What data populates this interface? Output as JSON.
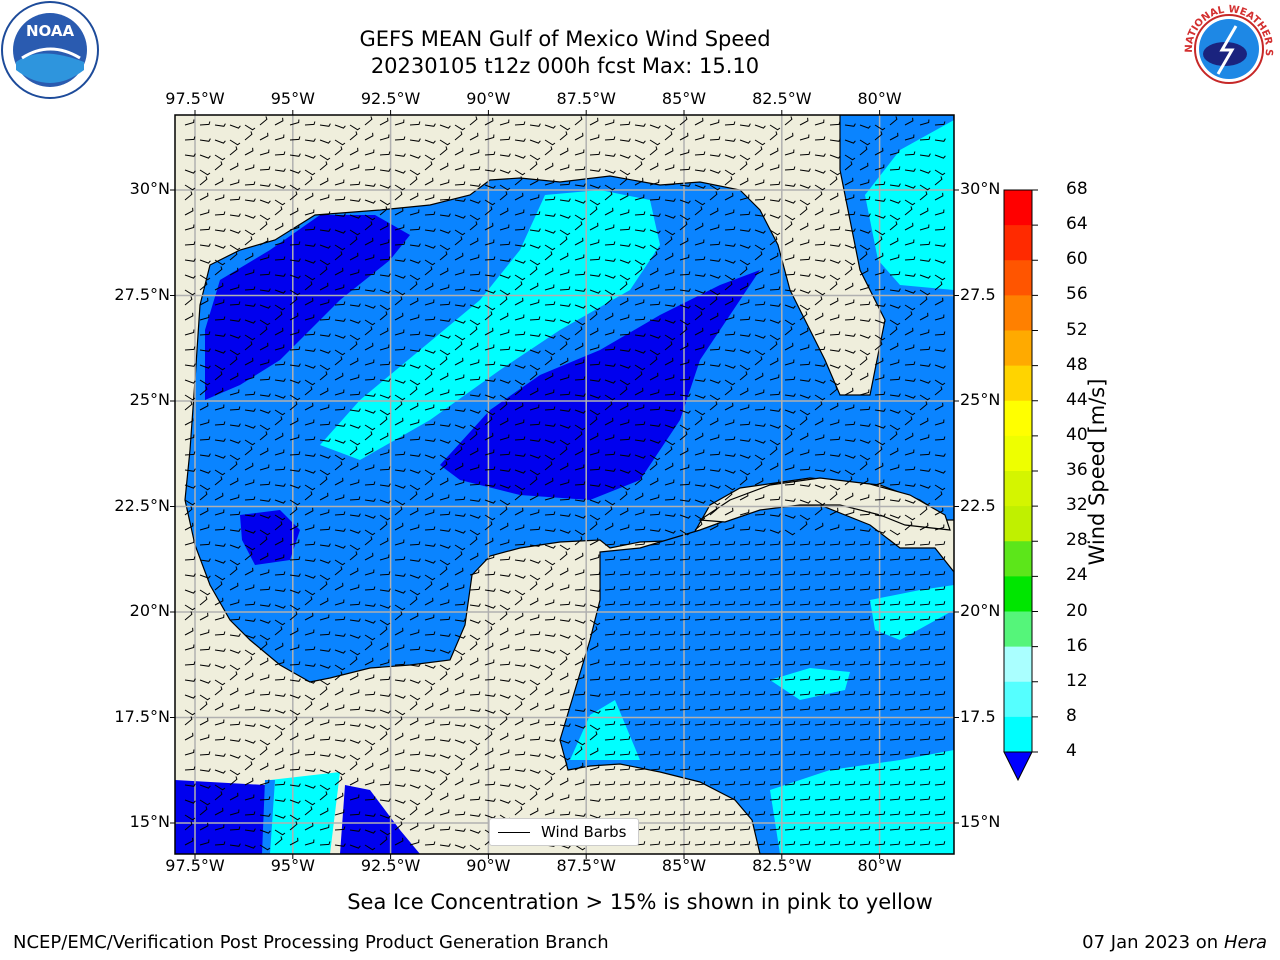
{
  "title_line1": "GEFS MEAN Gulf of Mexico Wind Speed",
  "title_line2": "20230105 t12z 000h fcst   Max: 15.10",
  "lon_labels": [
    "97.5°W",
    "95°W",
    "92.5°W",
    "90°W",
    "87.5°W",
    "85°W",
    "82.5°W",
    "80°W"
  ],
  "lat_labels": [
    "30°N",
    "27.5°N",
    "25°N",
    "22.5°N",
    "20°N",
    "17.5°N",
    "15°N"
  ],
  "lat_labels_right": [
    "30°N",
    "27.5",
    "25°N",
    "22.5",
    "20°N",
    "17.5",
    "15°N"
  ],
  "legend_label": "Wind Barbs",
  "colorbar": {
    "title": "Wind Speed [m/s]",
    "ticks": [
      "68",
      "64",
      "60",
      "56",
      "52",
      "48",
      "44",
      "40",
      "36",
      "32",
      "28",
      "24",
      "20",
      "16",
      "12",
      "8",
      "4"
    ],
    "colors": [
      "#ff0000",
      "#ff2a00",
      "#ff5500",
      "#ff8000",
      "#ffaa00",
      "#ffd400",
      "#ffff00",
      "#eeff00",
      "#d4f500",
      "#c0f000",
      "#5ce61a",
      "#00e600",
      "#55f57a",
      "#aaffff",
      "#55ffff",
      "#00ffff",
      "#0080ff"
    ],
    "under_color": "#0000ff"
  },
  "map_colors": {
    "land": "#efeedc",
    "speed_4_8": "#0a84ff",
    "speed_below_4": "#0000ee",
    "speed_8_12": "#00ffff"
  },
  "bottom_note": "Sea Ice Concentration > 15% is shown in pink to yellow",
  "footer_left": "NCEP/EMC/Verification Post Processing Product Generation Branch",
  "footer_date": "07 Jan 2023 on",
  "footer_host": "Hera",
  "logos": {
    "left": "noaa-logo",
    "left_text": "NOAA",
    "right": "nws-logo",
    "right_text": "NATIONAL WEATHER SERVICE"
  }
}
